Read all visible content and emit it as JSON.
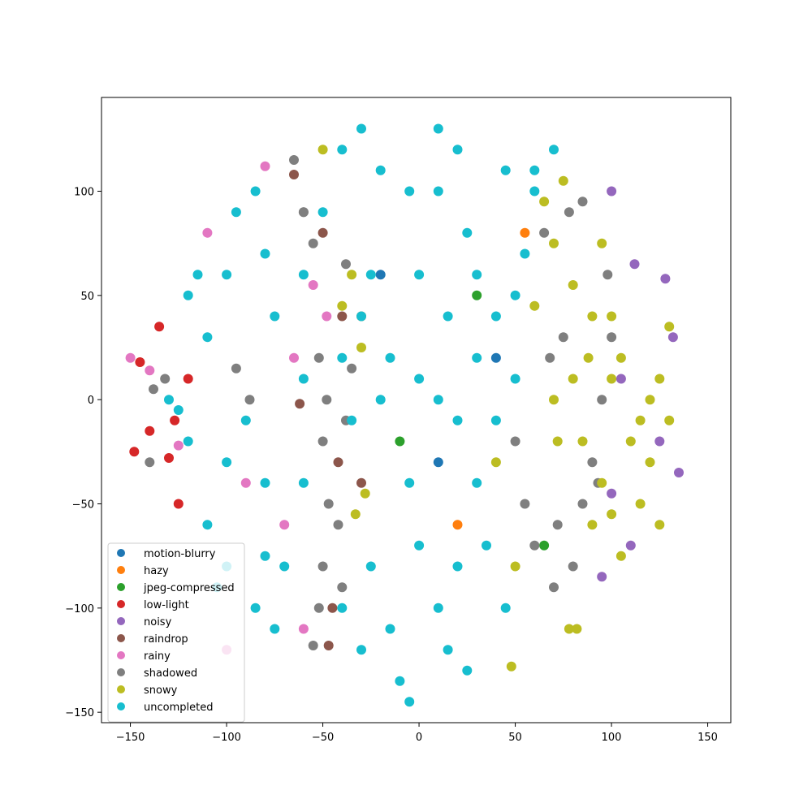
{
  "chart_data": {
    "type": "scatter",
    "title": "",
    "xlabel": "",
    "ylabel": "",
    "xlim": [
      -165,
      162
    ],
    "ylim": [
      -155,
      145
    ],
    "x_ticks": [
      -150,
      -100,
      -50,
      0,
      50,
      100,
      150
    ],
    "y_ticks": [
      -150,
      -100,
      -50,
      0,
      50,
      100
    ],
    "x_tick_labels": [
      "−150",
      "−100",
      "−50",
      "0",
      "50",
      "100",
      "150"
    ],
    "y_tick_labels": [
      "−150",
      "−100",
      "−50",
      "0",
      "50",
      "100"
    ],
    "grid": false,
    "legend_position": "lower-left",
    "series": [
      {
        "name": "motion-blurry",
        "color": "#1f77b4",
        "points": [
          [
            -20,
            60
          ],
          [
            10,
            -30
          ],
          [
            40,
            20
          ]
        ]
      },
      {
        "name": "hazy",
        "color": "#ff7f0e",
        "points": [
          [
            -30,
            40
          ],
          [
            20,
            -60
          ],
          [
            55,
            80
          ]
        ]
      },
      {
        "name": "jpeg-compressed",
        "color": "#2ca02c",
        "points": [
          [
            -10,
            -20
          ],
          [
            30,
            50
          ],
          [
            65,
            -70
          ]
        ]
      },
      {
        "name": "low-light",
        "color": "#d62728",
        "points": [
          [
            -148,
            -25
          ],
          [
            -140,
            -15
          ],
          [
            -130,
            -28
          ],
          [
            -127,
            -10
          ],
          [
            -145,
            18
          ],
          [
            -135,
            35
          ],
          [
            -120,
            10
          ],
          [
            -125,
            -50
          ]
        ]
      },
      {
        "name": "noisy",
        "color": "#9467bd",
        "points": [
          [
            100,
            -45
          ],
          [
            110,
            -70
          ],
          [
            128,
            58
          ],
          [
            132,
            30
          ],
          [
            135,
            -35
          ],
          [
            105,
            10
          ],
          [
            112,
            65
          ],
          [
            125,
            -20
          ],
          [
            95,
            -85
          ],
          [
            100,
            100
          ]
        ]
      },
      {
        "name": "raindrop",
        "color": "#8c564b",
        "points": [
          [
            -65,
            108
          ],
          [
            -45,
            -100
          ],
          [
            -47,
            -118
          ],
          [
            -42,
            -30
          ],
          [
            -62,
            -2
          ],
          [
            -30,
            -40
          ],
          [
            -50,
            80
          ],
          [
            -40,
            40
          ]
        ]
      },
      {
        "name": "rainy",
        "color": "#e377c2",
        "points": [
          [
            -150,
            20
          ],
          [
            -140,
            14
          ],
          [
            -125,
            -22
          ],
          [
            -110,
            80
          ],
          [
            -80,
            112
          ],
          [
            -65,
            20
          ],
          [
            -55,
            55
          ],
          [
            -70,
            -60
          ],
          [
            -60,
            -110
          ],
          [
            -90,
            -40
          ],
          [
            -100,
            -120
          ],
          [
            -48,
            40
          ]
        ]
      },
      {
        "name": "shadowed",
        "color": "#7f7f7f",
        "points": [
          [
            -140,
            -30
          ],
          [
            -138,
            5
          ],
          [
            -132,
            10
          ],
          [
            -95,
            15
          ],
          [
            -88,
            0
          ],
          [
            -65,
            115
          ],
          [
            -60,
            90
          ],
          [
            -55,
            75
          ],
          [
            -52,
            20
          ],
          [
            -48,
            0
          ],
          [
            -50,
            -20
          ],
          [
            -47,
            -50
          ],
          [
            -50,
            -80
          ],
          [
            -52,
            -100
          ],
          [
            -55,
            -118
          ],
          [
            -42,
            -60
          ],
          [
            -40,
            -90
          ],
          [
            -38,
            65
          ],
          [
            -35,
            15
          ],
          [
            -38,
            -10
          ],
          [
            -60,
            90
          ],
          [
            50,
            -20
          ],
          [
            55,
            -50
          ],
          [
            60,
            -70
          ],
          [
            70,
            -90
          ],
          [
            72,
            -60
          ],
          [
            68,
            20
          ],
          [
            75,
            30
          ],
          [
            80,
            -80
          ],
          [
            85,
            -50
          ],
          [
            90,
            -30
          ],
          [
            95,
            0
          ],
          [
            100,
            30
          ],
          [
            98,
            60
          ],
          [
            93,
            -40
          ],
          [
            65,
            80
          ],
          [
            78,
            90
          ],
          [
            85,
            95
          ]
        ]
      },
      {
        "name": "snowy",
        "color": "#bcbd22",
        "points": [
          [
            -50,
            120
          ],
          [
            -35,
            60
          ],
          [
            -40,
            45
          ],
          [
            -28,
            -45
          ],
          [
            -33,
            -55
          ],
          [
            -30,
            25
          ],
          [
            65,
            95
          ],
          [
            75,
            105
          ],
          [
            70,
            75
          ],
          [
            80,
            55
          ],
          [
            90,
            40
          ],
          [
            88,
            20
          ],
          [
            100,
            40
          ],
          [
            105,
            20
          ],
          [
            115,
            -10
          ],
          [
            120,
            0
          ],
          [
            110,
            -20
          ],
          [
            95,
            -40
          ],
          [
            90,
            -60
          ],
          [
            100,
            -55
          ],
          [
            105,
            -75
          ],
          [
            115,
            -50
          ],
          [
            120,
            -30
          ],
          [
            125,
            -60
          ],
          [
            125,
            10
          ],
          [
            130,
            -10
          ],
          [
            130,
            35
          ],
          [
            95,
            75
          ],
          [
            100,
            10
          ],
          [
            82,
            -110
          ],
          [
            78,
            -110
          ],
          [
            48,
            -128
          ],
          [
            70,
            0
          ],
          [
            80,
            10
          ],
          [
            72,
            -20
          ],
          [
            60,
            45
          ],
          [
            50,
            -80
          ],
          [
            85,
            -20
          ],
          [
            40,
            -30
          ]
        ]
      },
      {
        "name": "uncompleted",
        "color": "#17becf",
        "points": [
          [
            -20,
            110
          ],
          [
            -25,
            60
          ],
          [
            -5,
            100
          ],
          [
            0,
            60
          ],
          [
            10,
            100
          ],
          [
            25,
            80
          ],
          [
            20,
            120
          ],
          [
            45,
            110
          ],
          [
            60,
            110
          ],
          [
            55,
            70
          ],
          [
            40,
            40
          ],
          [
            30,
            60
          ],
          [
            -15,
            20
          ],
          [
            0,
            10
          ],
          [
            10,
            0
          ],
          [
            20,
            -10
          ],
          [
            -5,
            -40
          ],
          [
            0,
            -70
          ],
          [
            10,
            -100
          ],
          [
            -15,
            -110
          ],
          [
            -10,
            -135
          ],
          [
            -5,
            -145
          ],
          [
            15,
            -120
          ],
          [
            20,
            -80
          ],
          [
            30,
            -40
          ],
          [
            -60,
            60
          ],
          [
            -80,
            70
          ],
          [
            -100,
            60
          ],
          [
            -120,
            50
          ],
          [
            -110,
            30
          ],
          [
            -90,
            -10
          ],
          [
            -100,
            -30
          ],
          [
            -120,
            -20
          ],
          [
            -130,
            0
          ],
          [
            -110,
            -60
          ],
          [
            -100,
            -80
          ],
          [
            -80,
            -40
          ],
          [
            -70,
            -80
          ],
          [
            -75,
            -110
          ],
          [
            -60,
            10
          ],
          [
            -40,
            -100
          ],
          [
            -30,
            -120
          ],
          [
            -25,
            -80
          ],
          [
            -20,
            0
          ],
          [
            -30,
            40
          ],
          [
            -40,
            20
          ],
          [
            30,
            20
          ],
          [
            50,
            10
          ],
          [
            40,
            -10
          ],
          [
            35,
            -70
          ],
          [
            45,
            -100
          ],
          [
            25,
            -130
          ],
          [
            10,
            130
          ],
          [
            -30,
            130
          ],
          [
            -50,
            90
          ],
          [
            -75,
            40
          ],
          [
            -85,
            100
          ],
          [
            -95,
            90
          ],
          [
            -115,
            60
          ],
          [
            -125,
            -5
          ],
          [
            -80,
            -75
          ],
          [
            -60,
            -40
          ],
          [
            -35,
            -10
          ],
          [
            15,
            40
          ],
          [
            50,
            50
          ],
          [
            60,
            100
          ],
          [
            70,
            120
          ],
          [
            -40,
            120
          ],
          [
            -85,
            -100
          ],
          [
            -105,
            -90
          ]
        ]
      }
    ]
  }
}
